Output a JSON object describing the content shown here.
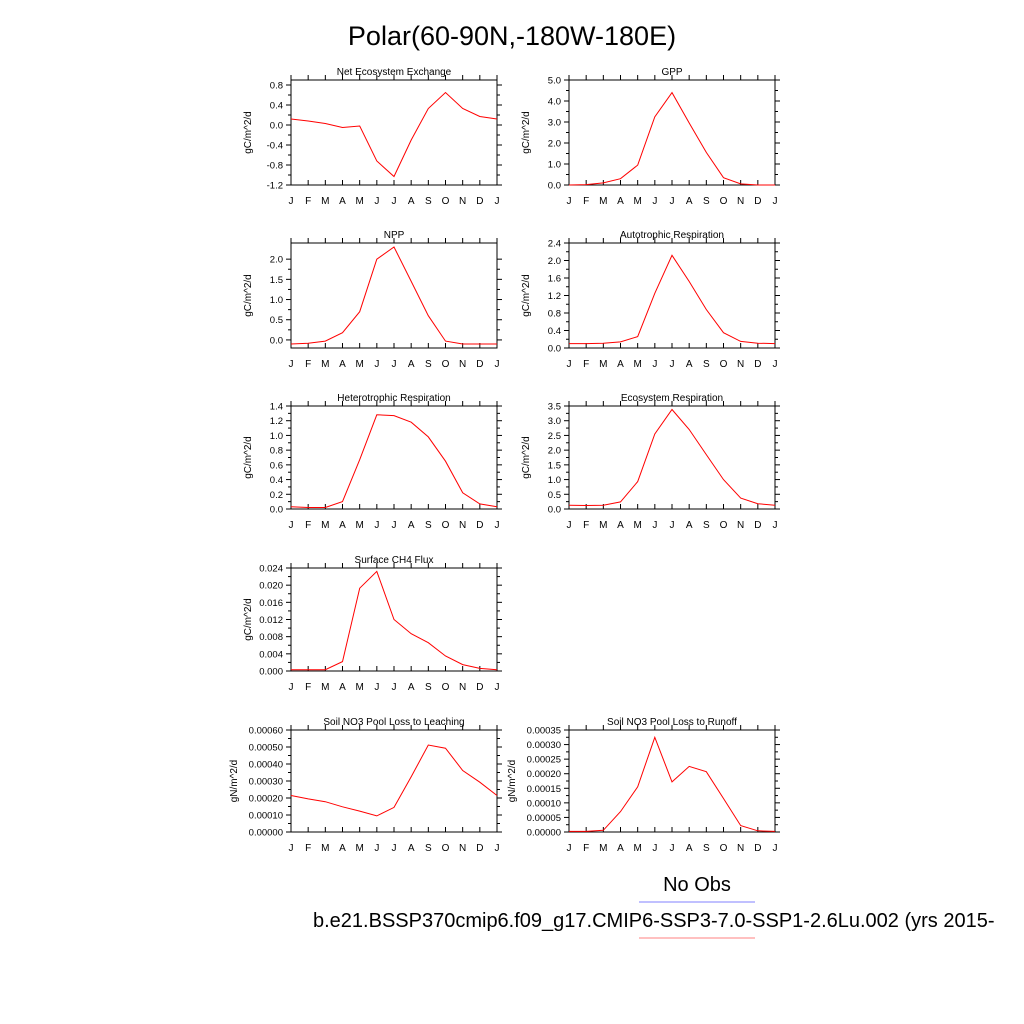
{
  "figure": {
    "title": "Polar(60-90N,-180W-180E)",
    "legend": {
      "obs_label": "No Obs",
      "obs_color": "#8080ff",
      "model_label": "b.e21.BSSP370cmip6.f09_g17.CMIP6-SSP3-7.0-SSP1-2.6Lu.002 (yrs 2015-",
      "model_color": "#ff8080"
    },
    "series_color": "#ff0000"
  },
  "chart_data": [
    {
      "type": "line",
      "title": "Net Ecosystem Exchange",
      "ylabel": "gC/m^2/d",
      "x": [
        "J",
        "F",
        "M",
        "A",
        "M",
        "J",
        "J",
        "A",
        "S",
        "O",
        "N",
        "D",
        "J"
      ],
      "ylim": [
        -1.2,
        0.9
      ],
      "yticks": [
        -1.2,
        -0.8,
        -0.4,
        0.0,
        0.4,
        0.8
      ],
      "ytick_labels": [
        "-1.2",
        "-0.8",
        "-0.4",
        "0.0",
        "0.4",
        "0.8"
      ],
      "series": [
        {
          "values": [
            0.12,
            0.08,
            0.03,
            -0.05,
            -0.02,
            -0.72,
            -1.03,
            -0.3,
            0.33,
            0.65,
            0.33,
            0.17,
            0.12
          ]
        }
      ]
    },
    {
      "type": "line",
      "title": "GPP",
      "ylabel": "gC/m^2/d",
      "x": [
        "J",
        "F",
        "M",
        "A",
        "M",
        "J",
        "J",
        "A",
        "S",
        "O",
        "N",
        "D",
        "J"
      ],
      "ylim": [
        0.0,
        5.0
      ],
      "yticks": [
        0.0,
        1.0,
        2.0,
        3.0,
        4.0,
        5.0
      ],
      "ytick_labels": [
        "0.0",
        "1.0",
        "2.0",
        "3.0",
        "4.0",
        "5.0"
      ],
      "series": [
        {
          "values": [
            0.0,
            0.02,
            0.1,
            0.3,
            0.95,
            3.25,
            4.4,
            2.95,
            1.55,
            0.35,
            0.05,
            0.0,
            0.0
          ]
        }
      ]
    },
    {
      "type": "line",
      "title": "NPP",
      "ylabel": "gC/m^2/d",
      "x": [
        "J",
        "F",
        "M",
        "A",
        "M",
        "J",
        "J",
        "A",
        "S",
        "O",
        "N",
        "D",
        "J"
      ],
      "ylim": [
        -0.2,
        2.4
      ],
      "yticks": [
        0.0,
        0.5,
        1.0,
        1.5,
        2.0
      ],
      "ytick_labels": [
        "0.0",
        "0.5",
        "1.0",
        "1.5",
        "2.0"
      ],
      "series": [
        {
          "values": [
            -0.1,
            -0.08,
            -0.03,
            0.18,
            0.7,
            2.0,
            2.3,
            1.45,
            0.6,
            -0.03,
            -0.1,
            -0.1,
            -0.1
          ]
        }
      ]
    },
    {
      "type": "line",
      "title": "Autotrophic Respiration",
      "ylabel": "gC/m^2/d",
      "x": [
        "J",
        "F",
        "M",
        "A",
        "M",
        "J",
        "J",
        "A",
        "S",
        "O",
        "N",
        "D",
        "J"
      ],
      "ylim": [
        0.0,
        2.4
      ],
      "yticks": [
        0.0,
        0.4,
        0.8,
        1.2,
        1.6,
        2.0,
        2.4
      ],
      "ytick_labels": [
        "0.0",
        "0.4",
        "0.8",
        "1.2",
        "1.6",
        "2.0",
        "2.4"
      ],
      "series": [
        {
          "values": [
            0.1,
            0.1,
            0.11,
            0.14,
            0.26,
            1.25,
            2.12,
            1.52,
            0.88,
            0.35,
            0.15,
            0.11,
            0.1
          ]
        }
      ]
    },
    {
      "type": "line",
      "title": "Heterotrophic Respiration",
      "ylabel": "gC/m^2/d",
      "x": [
        "J",
        "F",
        "M",
        "A",
        "M",
        "J",
        "J",
        "A",
        "S",
        "O",
        "N",
        "D",
        "J"
      ],
      "ylim": [
        0.0,
        1.4
      ],
      "yticks": [
        0.0,
        0.2,
        0.4,
        0.6,
        0.8,
        1.0,
        1.2,
        1.4
      ],
      "ytick_labels": [
        "0.0",
        "0.2",
        "0.4",
        "0.6",
        "0.8",
        "1.0",
        "1.2",
        "1.4"
      ],
      "series": [
        {
          "values": [
            0.03,
            0.02,
            0.02,
            0.1,
            0.67,
            1.28,
            1.27,
            1.18,
            0.98,
            0.65,
            0.22,
            0.07,
            0.03
          ]
        }
      ]
    },
    {
      "type": "line",
      "title": "Ecosystem Respiration",
      "ylabel": "gC/m^2/d",
      "x": [
        "J",
        "F",
        "M",
        "A",
        "M",
        "J",
        "J",
        "A",
        "S",
        "O",
        "N",
        "D",
        "J"
      ],
      "ylim": [
        0.0,
        3.5
      ],
      "yticks": [
        0.0,
        0.5,
        1.0,
        1.5,
        2.0,
        2.5,
        3.0,
        3.5
      ],
      "ytick_labels": [
        "0.0",
        "0.5",
        "1.0",
        "1.5",
        "2.0",
        "2.5",
        "3.0",
        "3.5"
      ],
      "series": [
        {
          "values": [
            0.13,
            0.12,
            0.13,
            0.24,
            0.93,
            2.55,
            3.38,
            2.7,
            1.85,
            1.0,
            0.37,
            0.18,
            0.13
          ]
        }
      ]
    },
    {
      "type": "line",
      "title": "Surface CH4 Flux",
      "ylabel": "gC/m^2/d",
      "x": [
        "J",
        "F",
        "M",
        "A",
        "M",
        "J",
        "J",
        "A",
        "S",
        "O",
        "N",
        "D",
        "J"
      ],
      "ylim": [
        0.0,
        0.024
      ],
      "yticks": [
        0.0,
        0.004,
        0.008,
        0.012,
        0.016,
        0.02,
        0.024
      ],
      "ytick_labels": [
        "0.000",
        "0.004",
        "0.008",
        "0.012",
        "0.016",
        "0.020",
        "0.024"
      ],
      "series": [
        {
          "values": [
            0.0003,
            0.0003,
            0.0003,
            0.0022,
            0.0193,
            0.0232,
            0.012,
            0.0087,
            0.0066,
            0.0035,
            0.0015,
            0.0006,
            0.0003
          ]
        }
      ]
    },
    {
      "type": "line",
      "title": "Soil NO3 Pool Loss to Leaching",
      "ylabel": "gN/m^2/d",
      "x": [
        "J",
        "F",
        "M",
        "A",
        "M",
        "J",
        "J",
        "A",
        "S",
        "O",
        "N",
        "D",
        "J"
      ],
      "ylim": [
        0.0,
        0.0006
      ],
      "yticks": [
        0.0,
        0.0001,
        0.0002,
        0.0003,
        0.0004,
        0.0005,
        0.0006
      ],
      "ytick_labels": [
        "0.00000",
        "0.00010",
        "0.00020",
        "0.00030",
        "0.00040",
        "0.00050",
        "0.00060"
      ],
      "series": [
        {
          "values": [
            0.000215,
            0.000195,
            0.000178,
            0.000148,
            0.000123,
            9.5e-05,
            0.000145,
            0.000325,
            0.000512,
            0.000493,
            0.000362,
            0.000293,
            0.000215
          ]
        }
      ]
    },
    {
      "type": "line",
      "title": "Soil NO3 Pool Loss to Runoff",
      "ylabel": "gN/m^2/d",
      "x": [
        "J",
        "F",
        "M",
        "A",
        "M",
        "J",
        "J",
        "A",
        "S",
        "O",
        "N",
        "D",
        "J"
      ],
      "ylim": [
        0.0,
        0.00035
      ],
      "yticks": [
        0.0,
        5e-05,
        0.0001,
        0.00015,
        0.0002,
        0.00025,
        0.0003,
        0.00035
      ],
      "ytick_labels": [
        "0.00000",
        "0.00005",
        "0.00010",
        "0.00015",
        "0.00020",
        "0.00025",
        "0.00030",
        "0.00035"
      ],
      "series": [
        {
          "values": [
            2e-06,
            2e-06,
            6e-06,
            7e-05,
            0.000155,
            0.000325,
            0.000172,
            0.000225,
            0.000207,
            0.000115,
            2.2e-05,
            4e-06,
            2e-06
          ]
        }
      ]
    }
  ]
}
